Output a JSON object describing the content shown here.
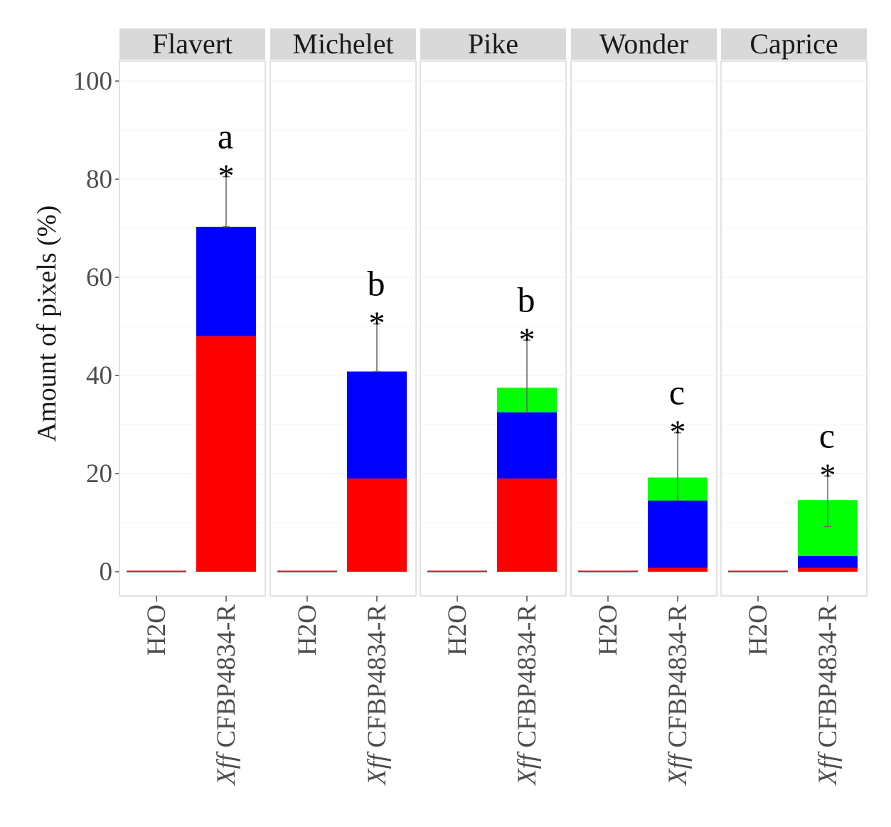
{
  "chart_data": {
    "type": "bar",
    "stacked": true,
    "facets": [
      "Flavert",
      "Michelet",
      "Pike",
      "Wonder",
      "Caprice"
    ],
    "categories": [
      "H2O",
      "CFBP4834-R"
    ],
    "category_prefix_italic": [
      "",
      "Xff"
    ],
    "ylabel": "Amount of pixels (%)",
    "xlabel": "",
    "ylim": [
      0,
      100
    ],
    "yticks": [
      0,
      20,
      40,
      60,
      80,
      100
    ],
    "colors": {
      "red": "#ff0000",
      "blue": "#0000ff",
      "green": "#00ff00"
    },
    "series": [
      {
        "color": "red",
        "values": [
          [
            0.2,
            48
          ],
          [
            0.1,
            19
          ],
          [
            0.2,
            19
          ],
          [
            0.1,
            0.8
          ],
          [
            0.1,
            0.8
          ]
        ]
      },
      {
        "color": "blue",
        "values": [
          [
            0,
            22.3
          ],
          [
            0,
            21.8
          ],
          [
            0,
            13.5
          ],
          [
            0,
            13.7
          ],
          [
            0,
            2.4
          ]
        ]
      },
      {
        "color": "green",
        "values": [
          [
            0,
            0
          ],
          [
            0,
            0
          ],
          [
            0,
            5
          ],
          [
            0,
            4.7
          ],
          [
            0,
            11.4
          ]
        ]
      }
    ],
    "error_bars": [
      {
        "facet": "Flavert",
        "lower": 70.3,
        "upper": 80.5
      },
      {
        "facet": "Michelet",
        "lower": 40.8,
        "upper": 50.5
      },
      {
        "facet": "Pike",
        "lower": 32.5,
        "upper": 47.2
      },
      {
        "facet": "Wonder",
        "lower": 14.5,
        "upper": 28.3
      },
      {
        "facet": "Caprice",
        "lower": 9.2,
        "upper": 19.5
      }
    ],
    "significance": [
      {
        "facet": "Flavert",
        "letter": "a",
        "star": "*"
      },
      {
        "facet": "Michelet",
        "letter": "b",
        "star": "*"
      },
      {
        "facet": "Pike",
        "letter": "b",
        "star": "*"
      },
      {
        "facet": "Wonder",
        "letter": "c",
        "star": "*"
      },
      {
        "facet": "Caprice",
        "letter": "c",
        "star": "*"
      }
    ],
    "grid": true
  }
}
